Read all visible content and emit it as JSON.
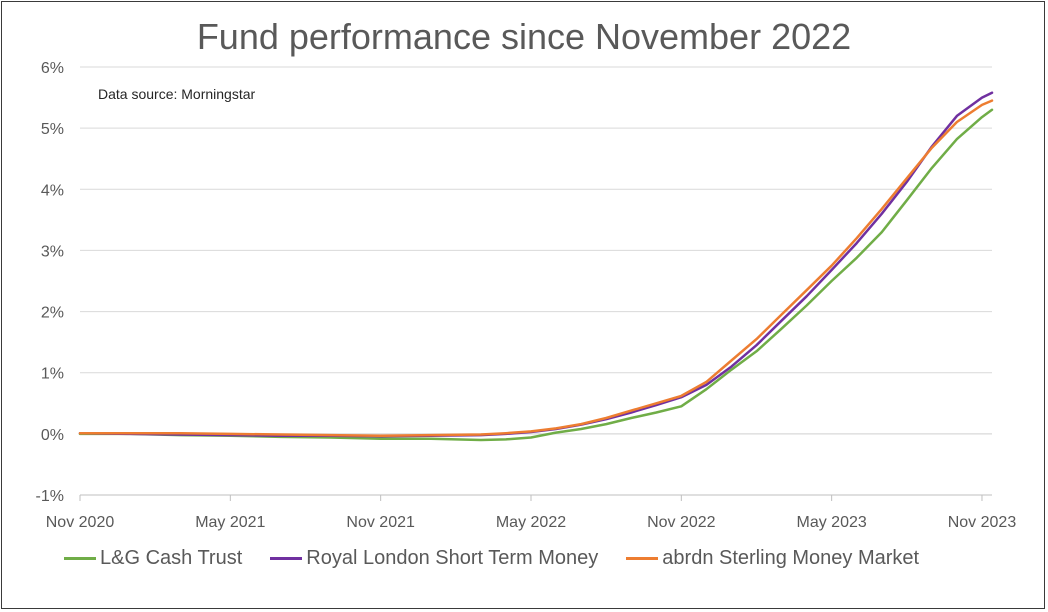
{
  "chart_data": {
    "type": "line",
    "title": "Fund performance since November 2022",
    "annotation": "Data source: Morningstar",
    "x_ticks": [
      "Nov 2020",
      "May 2021",
      "Nov 2021",
      "May 2022",
      "Nov 2022",
      "May 2023",
      "Nov 2023"
    ],
    "x_range": [
      0,
      36.4
    ],
    "y_ticks": [
      "-1%",
      "0%",
      "1%",
      "2%",
      "3%",
      "4%",
      "5%",
      "6%"
    ],
    "ylim": [
      -1,
      6
    ],
    "grid": true,
    "legend_position": "bottom",
    "series": [
      {
        "name": "L&G Cash Trust",
        "color": "#70ad47",
        "x": [
          0,
          2,
          4,
          6,
          8,
          10,
          12,
          14,
          16,
          17,
          18,
          19,
          20,
          21,
          22,
          23,
          24,
          25,
          26,
          27,
          28,
          29,
          30,
          31,
          32,
          33,
          34,
          35,
          36,
          36.4
        ],
        "y": [
          0,
          0,
          -0.02,
          -0.03,
          -0.05,
          -0.06,
          -0.08,
          -0.08,
          -0.1,
          -0.09,
          -0.06,
          0.02,
          0.08,
          0.16,
          0.26,
          0.35,
          0.45,
          0.73,
          1.05,
          1.35,
          1.72,
          2.1,
          2.5,
          2.88,
          3.3,
          3.82,
          4.35,
          4.82,
          5.18,
          5.3
        ]
      },
      {
        "name": "Royal London Short Term Money",
        "color": "#7030a0",
        "x": [
          0,
          2,
          4,
          6,
          8,
          10,
          12,
          14,
          16,
          17,
          18,
          19,
          20,
          21,
          22,
          23,
          24,
          25,
          26,
          27,
          28,
          29,
          30,
          31,
          32,
          33,
          34,
          35,
          36,
          36.4
        ],
        "y": [
          0.01,
          0,
          -0.01,
          -0.02,
          -0.03,
          -0.03,
          -0.04,
          -0.03,
          -0.02,
          0,
          0.03,
          0.08,
          0.15,
          0.24,
          0.35,
          0.47,
          0.6,
          0.8,
          1.1,
          1.45,
          1.85,
          2.25,
          2.68,
          3.12,
          3.6,
          4.12,
          4.7,
          5.2,
          5.5,
          5.58
        ]
      },
      {
        "name": "abrdn Sterling Money Market",
        "color": "#ed7d31",
        "x": [
          0,
          2,
          4,
          6,
          8,
          10,
          12,
          14,
          16,
          17,
          18,
          19,
          20,
          21,
          22,
          23,
          24,
          25,
          26,
          27,
          28,
          29,
          30,
          31,
          32,
          33,
          34,
          35,
          36,
          36.4
        ],
        "y": [
          0.01,
          0.01,
          0.01,
          0,
          -0.01,
          -0.02,
          -0.03,
          -0.02,
          -0.01,
          0.01,
          0.04,
          0.09,
          0.16,
          0.26,
          0.38,
          0.5,
          0.62,
          0.85,
          1.2,
          1.55,
          1.95,
          2.35,
          2.75,
          3.2,
          3.68,
          4.18,
          4.68,
          5.1,
          5.38,
          5.45
        ]
      }
    ]
  }
}
